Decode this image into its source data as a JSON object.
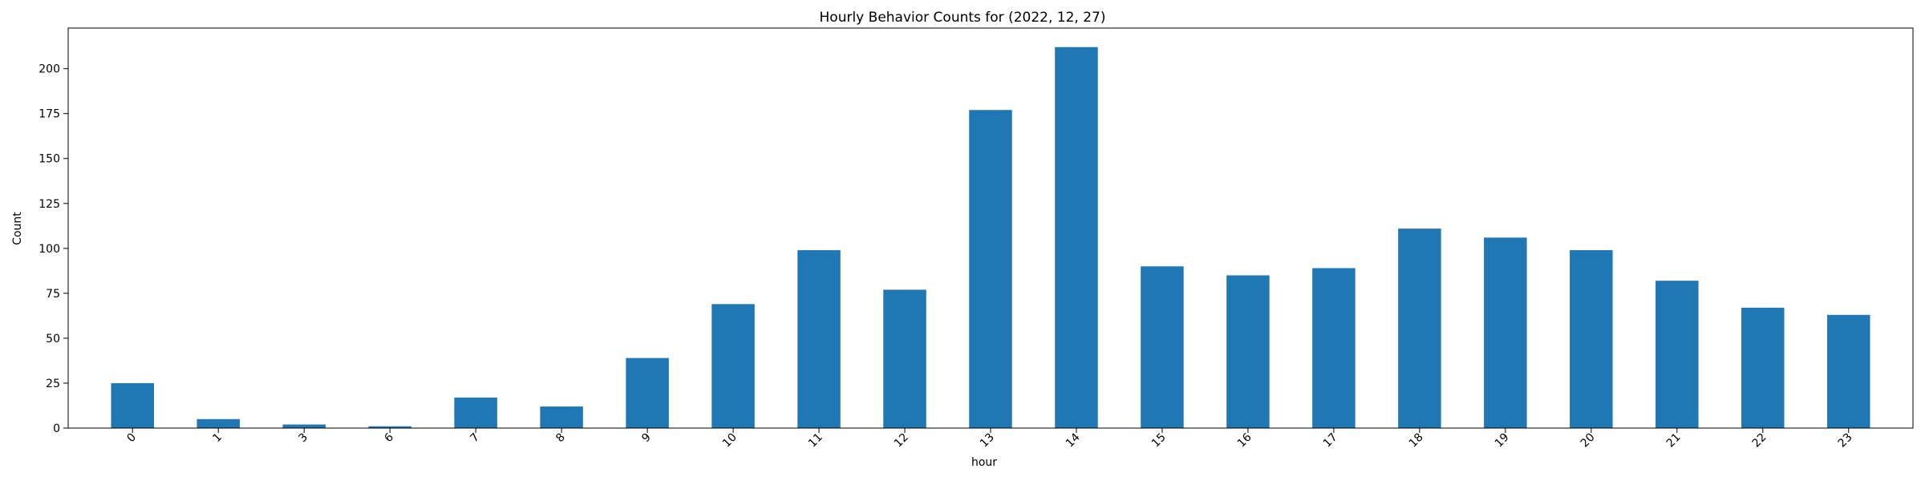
{
  "chart_data": {
    "type": "bar",
    "title": "Hourly Behavior Counts for (2022, 12, 27)",
    "xlabel": "hour",
    "ylabel": "Count",
    "categories": [
      "0",
      "1",
      "3",
      "6",
      "7",
      "8",
      "9",
      "10",
      "11",
      "12",
      "13",
      "14",
      "15",
      "16",
      "17",
      "18",
      "19",
      "20",
      "21",
      "22",
      "23"
    ],
    "values": [
      25,
      5,
      2,
      1,
      17,
      12,
      39,
      69,
      99,
      77,
      177,
      212,
      90,
      85,
      89,
      111,
      106,
      99,
      82,
      67,
      63
    ],
    "ylim": [
      0,
      222.6
    ],
    "yticks": [
      "0",
      "25",
      "50",
      "75",
      "100",
      "125",
      "150",
      "175",
      "200"
    ],
    "bar_color": "#1f77b4",
    "grid": false,
    "legend": false
  }
}
